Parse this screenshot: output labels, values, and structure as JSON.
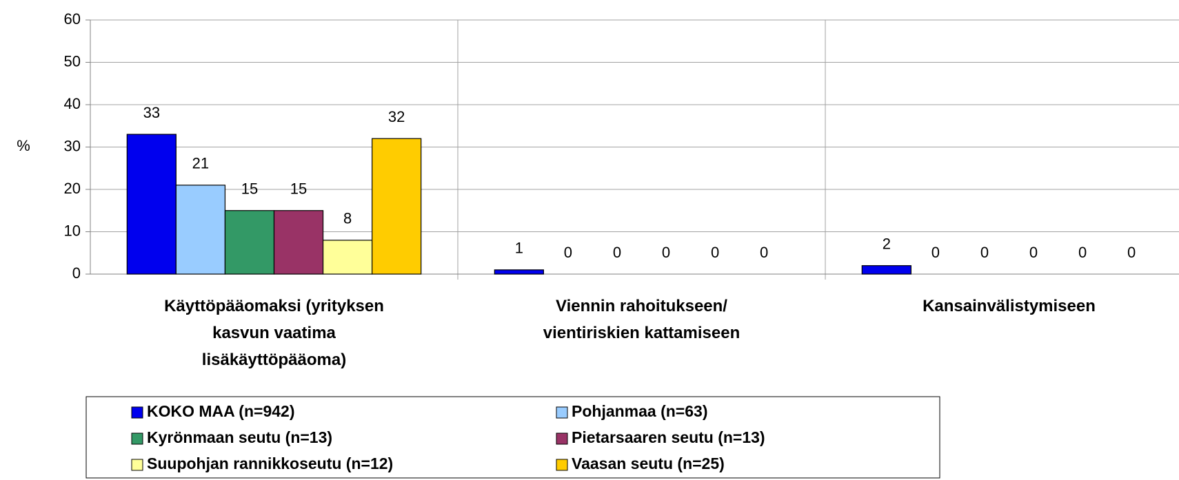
{
  "chart_data": {
    "type": "bar",
    "ylabel": "%",
    "categories": [
      [
        "Käyttöpääomaksi (yrityksen",
        "kasvun vaatima",
        "lisäkäyttöpääoma)"
      ],
      [
        "Viennin rahoitukseen/",
        "vientiriskien kattamiseen"
      ],
      [
        "Kansainvälistymiseen"
      ]
    ],
    "series": [
      {
        "name": "KOKO MAA (n=942)",
        "color": "#0000ee",
        "values": [
          33,
          1,
          2
        ]
      },
      {
        "name": "Pohjanmaa (n=63)",
        "color": "#99ccff",
        "values": [
          21,
          0,
          0
        ]
      },
      {
        "name": "Kyrönmaan seutu (n=13)",
        "color": "#339966",
        "values": [
          15,
          0,
          0
        ]
      },
      {
        "name": "Pietarsaaren seutu (n=13)",
        "color": "#993366",
        "values": [
          15,
          0,
          0
        ]
      },
      {
        "name": "Suupohjan rannikkoseutu (n=12)",
        "color": "#ffff99",
        "values": [
          8,
          0,
          0
        ]
      },
      {
        "name": "Vaasan seutu (n=25)",
        "color": "#ffcc00",
        "values": [
          32,
          0,
          0
        ]
      }
    ],
    "ylim": [
      0,
      60
    ],
    "yticks": [
      0,
      10,
      20,
      30,
      40,
      50,
      60
    ],
    "grid": true,
    "legend": "bottom"
  }
}
